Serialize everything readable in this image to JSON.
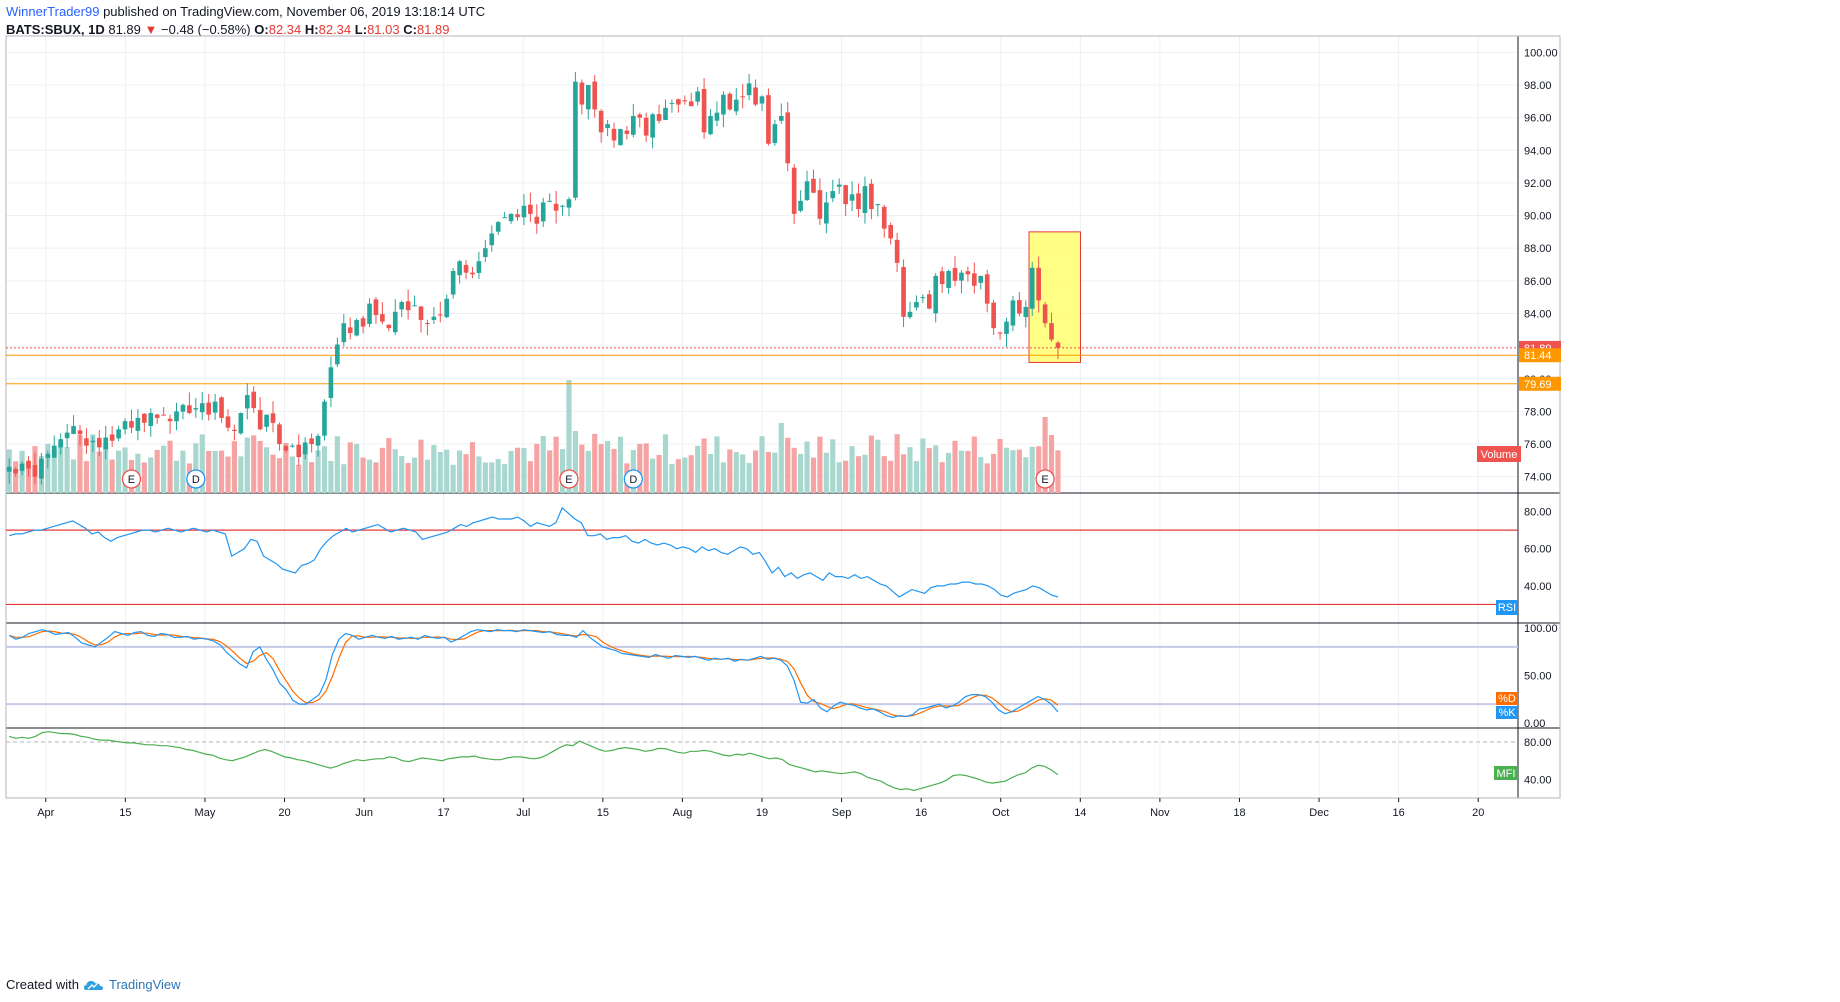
{
  "header": {
    "author": "WinnerTrader99",
    "published": "published on TradingView.com, November 06, 2019 13:18:14 UTC",
    "symbol": "BATS:SBUX, 1D",
    "last": "81.89",
    "change": "−0.48 (−0.58%)",
    "o_label": "O:",
    "o": "82.34",
    "h_label": "H:",
    "h": "82.34",
    "l_label": "L:",
    "l": "81.03",
    "c_label": "C:",
    "c": "81.89"
  },
  "footer": {
    "created_with": "Created with",
    "brand": "TradingView"
  },
  "colors": {
    "up": "#26a69a",
    "down": "#ef5350",
    "volUp": "#a7d7cf",
    "volDown": "#f5a3a3",
    "rsi": "#2196f3",
    "stochK": "#2196f3",
    "stochD": "#ff6d00",
    "mfi": "#4caf50",
    "grid": "#eef0f3",
    "highlight": "#ffff66"
  },
  "chart_data": {
    "type": "candlestick",
    "price_ticks": [
      "100.00",
      "98.00",
      "96.00",
      "94.00",
      "92.00",
      "90.00",
      "88.00",
      "86.00",
      "84.00",
      "82.00",
      "80.00",
      "78.00",
      "76.00",
      "74.00"
    ],
    "price_range": [
      73,
      101
    ],
    "price_tags": [
      {
        "value": 81.89,
        "label": "81.89",
        "color": "#ef5350",
        "line": "dotted"
      },
      {
        "value": 81.44,
        "label": "81.44",
        "color": "#ff9800",
        "line": "solid"
      },
      {
        "value": 79.69,
        "label": "79.69",
        "color": "#ff9800",
        "line": "solid"
      }
    ],
    "volume_label": "Volume",
    "x_ticks": [
      "Apr",
      "15",
      "May",
      "20",
      "Jun",
      "17",
      "Jul",
      "15",
      "Aug",
      "19",
      "Sep",
      "16",
      "Oct",
      "14",
      "Nov",
      "18",
      "Dec",
      "16",
      "20"
    ],
    "event_markers": [
      {
        "letter": "E",
        "bar": 19,
        "color": "#ef5350"
      },
      {
        "letter": "D",
        "bar": 29,
        "color": "#2196f3"
      },
      {
        "letter": "E",
        "bar": 87,
        "color": "#ef5350"
      },
      {
        "letter": "D",
        "bar": 97,
        "color": "#2196f3"
      },
      {
        "letter": "E",
        "bar": 161,
        "color": "#ef5350"
      }
    ],
    "highlight_box": {
      "bar_from": 159,
      "bar_to": 166,
      "high": 89.0,
      "low": 81.0
    },
    "ohlc_close_sequence": [
      74.6,
      74.2,
      74.8,
      74.5,
      74.0,
      75.1,
      75.4,
      75.9,
      76.3,
      76.7,
      77.1,
      76.6,
      75.9,
      76.2,
      75.8,
      76.4,
      76.2,
      76.9,
      77.4,
      77.0,
      77.6,
      77.3,
      77.9,
      77.6,
      77.8,
      77.4,
      78.0,
      78.4,
      77.9,
      78.2,
      78.5,
      77.8,
      78.6,
      77.6,
      77.0,
      76.8,
      77.9,
      79.0,
      78.2,
      76.9,
      77.8,
      77.3,
      76.0,
      75.6,
      75.9,
      75.2,
      76.1,
      76.0,
      76.5,
      78.6,
      80.7,
      82.1,
      83.4,
      82.8,
      83.6,
      83.2,
      84.6,
      83.9,
      83.5,
      83.1,
      84.1,
      84.7,
      84.2,
      84.5,
      83.6,
      83.4,
      83.8,
      83.9,
      84.9,
      86.6,
      87.2,
      86.5,
      86.4,
      87.2,
      88.0,
      88.9,
      89.6,
      89.9,
      90.1,
      89.9,
      90.6,
      90.1,
      89.5,
      90.8,
      90.9,
      90.3,
      90.6,
      91.0,
      98.2,
      96.8,
      98.0,
      96.5,
      95.1,
      95.6,
      94.6,
      95.3,
      95.0,
      96.1,
      96.0,
      94.9,
      96.2,
      95.8,
      96.6,
      96.9,
      96.8,
      97.0,
      96.7,
      97.6,
      95.1,
      96.1,
      96.3,
      97.4,
      96.5,
      97.1,
      97.3,
      98.1,
      96.8,
      97.3,
      94.4,
      95.6,
      96.1,
      93.2,
      90.1,
      90.9,
      92.1,
      91.4,
      89.8,
      90.8,
      91.5,
      91.9,
      90.7,
      91.3,
      90.4,
      91.8,
      90.4,
      90.7,
      89.2,
      88.6,
      87.1,
      83.8,
      84.1,
      84.7,
      85.0,
      84.3,
      86.3,
      85.8,
      86.6,
      86.0,
      86.5,
      86.4,
      85.7,
      86.3,
      84.6,
      83.1,
      82.8,
      83.5,
      84.8,
      84.0,
      84.4,
      86.8,
      84.8,
      83.4,
      82.4,
      81.89
    ],
    "rsi": {
      "label": "RSI",
      "ticks": [
        "80.00",
        "60.00",
        "40.00"
      ],
      "range": [
        20,
        90
      ],
      "upper": 70,
      "lower": 30,
      "values": [
        67,
        68,
        68,
        69,
        70,
        70,
        71,
        72,
        73,
        74,
        75,
        73,
        71,
        68,
        69,
        66,
        64,
        66,
        67,
        68,
        69,
        70,
        70,
        69,
        70,
        71,
        70,
        69,
        70,
        71,
        70,
        69,
        70,
        69,
        68,
        56,
        58,
        60,
        65,
        64,
        56,
        54,
        52,
        49,
        48,
        47,
        51,
        52,
        54,
        60,
        64,
        67,
        69,
        71,
        69,
        70,
        71,
        72,
        73,
        71,
        69,
        70,
        71,
        70,
        69,
        65,
        66,
        67,
        68,
        69,
        71,
        73,
        72,
        74,
        75,
        76,
        77,
        76,
        76,
        76,
        77,
        75,
        72,
        74,
        73,
        72,
        74,
        82,
        79,
        76,
        74,
        67,
        67,
        68,
        65,
        66,
        66,
        67,
        64,
        63,
        65,
        63,
        62,
        63,
        62,
        60,
        61,
        60,
        58,
        61,
        59,
        60,
        58,
        57,
        59,
        61,
        60,
        57,
        58,
        53,
        47,
        50,
        45,
        47,
        44,
        46,
        47,
        45,
        43,
        47,
        45,
        45,
        44,
        46,
        44,
        45,
        43,
        41,
        40,
        37,
        34,
        36,
        38,
        37,
        36,
        39,
        40,
        40,
        41,
        41,
        42,
        42,
        41,
        41,
        40,
        38,
        35,
        34,
        36,
        37,
        38,
        40,
        39,
        37,
        35,
        34
      ]
    },
    "stochastic": {
      "label_d": "%D",
      "label_k": "%K",
      "ticks": [
        "100.00",
        "50.00",
        "0.00"
      ],
      "range": [
        -5,
        105
      ],
      "upper": 80,
      "lower": 20,
      "k": [
        92,
        88,
        90,
        94,
        96,
        98,
        96,
        93,
        94,
        95,
        90,
        84,
        82,
        80,
        85,
        90,
        96,
        94,
        92,
        95,
        96,
        92,
        91,
        94,
        93,
        90,
        90,
        91,
        88,
        89,
        88,
        86,
        82,
        74,
        68,
        62,
        58,
        75,
        80,
        67,
        56,
        42,
        35,
        24,
        20,
        20,
        25,
        30,
        45,
        72,
        88,
        94,
        92,
        88,
        90,
        92,
        90,
        89,
        91,
        88,
        89,
        90,
        88,
        92,
        90,
        89,
        90,
        85,
        88,
        92,
        96,
        98,
        97,
        96,
        98,
        97,
        97,
        96,
        98,
        97,
        96,
        95,
        96,
        93,
        92,
        92,
        90,
        97,
        90,
        85,
        80,
        78,
        76,
        73,
        72,
        71,
        70,
        69,
        72,
        70,
        68,
        71,
        70,
        69,
        70,
        68,
        66,
        68,
        67,
        68,
        65,
        67,
        66,
        68,
        70,
        67,
        68,
        66,
        60,
        45,
        22,
        21,
        25,
        16,
        12,
        18,
        22,
        20,
        19,
        16,
        14,
        15,
        12,
        8,
        6,
        8,
        7,
        9,
        15,
        16,
        18,
        20,
        16,
        18,
        22,
        28,
        30,
        30,
        28,
        22,
        14,
        10,
        12,
        16,
        20,
        24,
        28,
        25,
        20,
        12
      ]
    },
    "mfi": {
      "label": "MFI",
      "ticks": [
        "80.00",
        "40.00"
      ],
      "range": [
        20,
        95
      ],
      "upper": 80,
      "lower": 20,
      "values": [
        86,
        84,
        85,
        84,
        86,
        90,
        91,
        90,
        89,
        89,
        88,
        86,
        85,
        83,
        82,
        82,
        81,
        80,
        79,
        79,
        78,
        77,
        77,
        76,
        76,
        75,
        74,
        72,
        71,
        69,
        67,
        66,
        63,
        61,
        60,
        62,
        64,
        67,
        70,
        72,
        70,
        67,
        64,
        63,
        61,
        60,
        58,
        56,
        54,
        52,
        54,
        57,
        59,
        61,
        60,
        61,
        62,
        62,
        64,
        63,
        60,
        59,
        61,
        63,
        62,
        61,
        60,
        62,
        63,
        64,
        64,
        65,
        63,
        62,
        61,
        61,
        63,
        64,
        64,
        63,
        62,
        63,
        66,
        70,
        74,
        77,
        76,
        81,
        78,
        75,
        72,
        70,
        71,
        73,
        74,
        73,
        72,
        70,
        71,
        73,
        73,
        71,
        69,
        68,
        70,
        70,
        71,
        70,
        68,
        66,
        65,
        67,
        66,
        68,
        66,
        64,
        62,
        63,
        61,
        56,
        54,
        52,
        50,
        48,
        49,
        48,
        47,
        46,
        47,
        48,
        46,
        42,
        40,
        38,
        34,
        31,
        29,
        30,
        28,
        30,
        32,
        34,
        36,
        39,
        44,
        45,
        44,
        42,
        40,
        37,
        36,
        37,
        38,
        42,
        45,
        47,
        52,
        55,
        54,
        50,
        45
      ]
    }
  }
}
